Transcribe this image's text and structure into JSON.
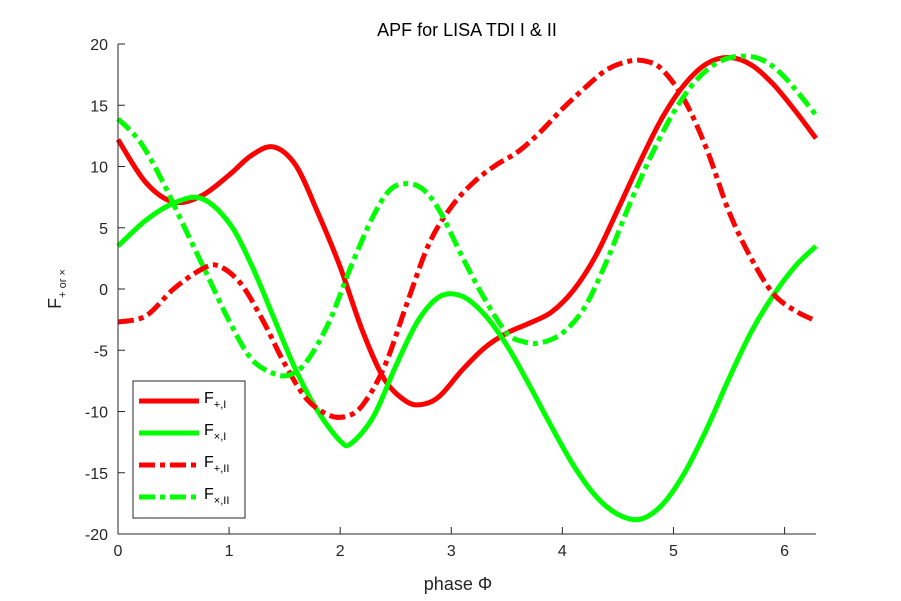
{
  "chart_data": {
    "type": "line",
    "title": "APF for LISA TDI I & II",
    "xlabel": "phase Φ",
    "ylabel_main": "F",
    "ylabel_sub": "+ or ×",
    "xlim": [
      0,
      6.283
    ],
    "ylim": [
      -20,
      20
    ],
    "xticks": [
      0,
      1,
      2,
      3,
      4,
      5,
      6
    ],
    "yticks": [
      -20,
      -15,
      -10,
      -5,
      0,
      5,
      10,
      15,
      20
    ],
    "grid": false,
    "legend_position": "bottom-left",
    "series": [
      {
        "legend_main": "F",
        "legend_sub": "+,I",
        "color": "#ff0000",
        "dash": "solid",
        "x": [
          0.0,
          0.25,
          0.5,
          0.75,
          1.0,
          1.2,
          1.4,
          1.6,
          1.8,
          2.0,
          2.2,
          2.4,
          2.6,
          2.75,
          2.9,
          3.1,
          3.3,
          3.5,
          3.7,
          3.9,
          4.1,
          4.3,
          4.5,
          4.7,
          4.9,
          5.1,
          5.3,
          5.5,
          5.7,
          5.9,
          6.1,
          6.283
        ],
        "y": [
          12.2,
          8.7,
          7.1,
          7.6,
          9.3,
          10.9,
          11.6,
          10.1,
          6.2,
          1.8,
          -3.4,
          -7.4,
          -9.2,
          -9.4,
          -8.7,
          -6.6,
          -4.8,
          -3.6,
          -2.8,
          -1.9,
          -0.1,
          2.7,
          6.5,
          10.4,
          14.0,
          16.7,
          18.4,
          18.9,
          18.3,
          16.7,
          14.5,
          12.3
        ]
      },
      {
        "legend_main": "F",
        "legend_sub": "×,I",
        "color": "#00ff00",
        "dash": "solid",
        "x": [
          0.0,
          0.25,
          0.5,
          0.75,
          1.0,
          1.2,
          1.4,
          1.6,
          1.8,
          2.0,
          2.1,
          2.3,
          2.5,
          2.7,
          2.9,
          3.1,
          3.3,
          3.5,
          3.7,
          3.9,
          4.1,
          4.3,
          4.5,
          4.7,
          4.9,
          5.1,
          5.3,
          5.5,
          5.7,
          5.9,
          6.1,
          6.283
        ],
        "y": [
          3.5,
          5.6,
          7.0,
          7.4,
          5.4,
          2.0,
          -2.3,
          -6.6,
          -10.0,
          -12.4,
          -12.6,
          -10.4,
          -6.3,
          -2.6,
          -0.6,
          -0.6,
          -2.1,
          -4.6,
          -7.8,
          -11.2,
          -14.4,
          -16.9,
          -18.4,
          -18.8,
          -17.6,
          -15.0,
          -11.4,
          -7.3,
          -3.5,
          -0.5,
          1.9,
          3.5
        ]
      },
      {
        "legend_main": "F",
        "legend_sub": "+,II",
        "color": "#ff0000",
        "dash": "dashdot",
        "x": [
          0.0,
          0.25,
          0.5,
          0.75,
          0.9,
          1.1,
          1.3,
          1.5,
          1.7,
          1.9,
          2.05,
          2.2,
          2.4,
          2.6,
          2.8,
          3.0,
          3.2,
          3.4,
          3.6,
          3.8,
          4.0,
          4.2,
          4.4,
          4.6,
          4.75,
          4.9,
          5.1,
          5.3,
          5.5,
          5.7,
          5.9,
          6.1,
          6.283
        ],
        "y": [
          -2.7,
          -2.2,
          0.0,
          1.6,
          1.9,
          0.5,
          -2.5,
          -6.1,
          -9.0,
          -10.3,
          -10.4,
          -9.5,
          -6.3,
          -1.2,
          3.7,
          6.7,
          8.7,
          10.1,
          11.2,
          12.8,
          14.7,
          16.4,
          17.9,
          18.6,
          18.6,
          17.9,
          15.4,
          11.4,
          6.3,
          2.5,
          -0.4,
          -1.8,
          -2.6
        ]
      },
      {
        "legend_main": "F",
        "legend_sub": "×,II",
        "color": "#00ff00",
        "dash": "dashdot",
        "x": [
          0.0,
          0.2,
          0.4,
          0.6,
          0.8,
          1.0,
          1.2,
          1.4,
          1.55,
          1.7,
          1.9,
          2.1,
          2.3,
          2.45,
          2.6,
          2.75,
          2.9,
          3.1,
          3.3,
          3.5,
          3.65,
          3.8,
          4.0,
          4.2,
          4.4,
          4.6,
          4.8,
          5.0,
          5.2,
          5.4,
          5.6,
          5.8,
          6.0,
          6.283
        ],
        "y": [
          13.9,
          12.0,
          8.8,
          5.0,
          1.2,
          -2.6,
          -5.7,
          -6.9,
          -7.0,
          -5.9,
          -2.7,
          1.9,
          6.0,
          8.1,
          8.6,
          8.1,
          6.3,
          2.6,
          -0.8,
          -3.6,
          -4.3,
          -4.4,
          -3.6,
          -1.5,
          2.3,
          6.8,
          10.9,
          14.4,
          17.0,
          18.5,
          19.0,
          18.7,
          17.3,
          14.2
        ]
      }
    ]
  }
}
